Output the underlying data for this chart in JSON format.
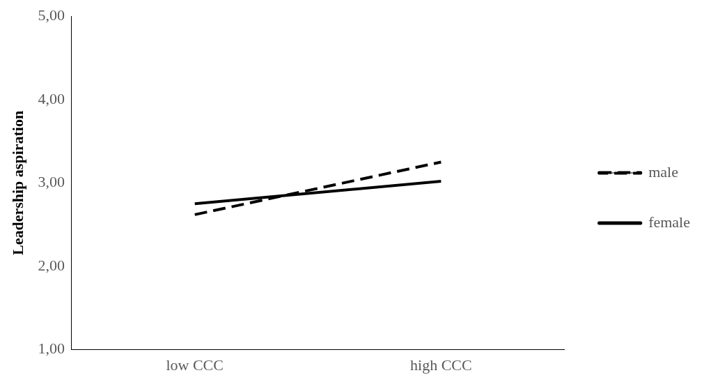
{
  "chart_data": {
    "type": "line",
    "ylabel": "Leadership aspiration",
    "categories": [
      "low CCC",
      "high CCC"
    ],
    "series": [
      {
        "name": "male",
        "color": "#000000",
        "line_style": "dashed",
        "values": [
          2.62,
          3.25
        ]
      },
      {
        "name": "female",
        "color": "#000000",
        "line_style": "solid",
        "values": [
          2.75,
          3.02
        ]
      }
    ],
    "ylim": [
      1,
      5
    ],
    "yticks": [
      {
        "value": 1,
        "label": "1,00"
      },
      {
        "value": 2,
        "label": "2,00"
      },
      {
        "value": 3,
        "label": "3,00"
      },
      {
        "value": 4,
        "label": "4,00"
      },
      {
        "value": 5,
        "label": "5,00"
      }
    ],
    "grid": false,
    "legend": "right",
    "marker": "none"
  }
}
